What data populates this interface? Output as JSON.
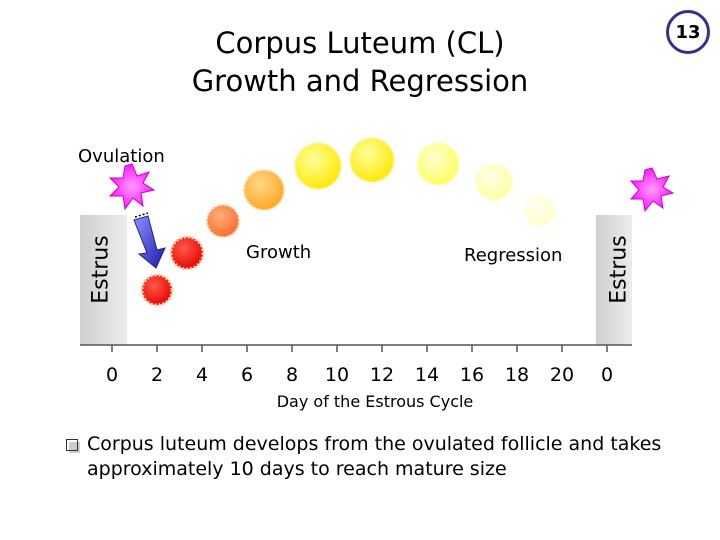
{
  "slide_number": "13",
  "title_line1": "Corpus Luteum (CL)",
  "title_line2": "Growth and Regression",
  "labels": {
    "ovulation": "Ovulation",
    "growth": "Growth",
    "regression": "Regression",
    "estrus_left": "Estrus",
    "estrus_right": "Estrus",
    "x_axis": "Day of the Estrous Cycle"
  },
  "day_ticks": [
    "0",
    "2",
    "4",
    "6",
    "8",
    "10",
    "12",
    "14",
    "16",
    "18",
    "20",
    "0"
  ],
  "bullet": {
    "line1": "Corpus luteum develops from the ovulated follicle and takes",
    "line2": "approximately 10 days to reach mature size"
  },
  "colors": {
    "ovulation_star": "#ff00ff",
    "cl_day1": "#ff0000",
    "cl_day4": "#ff2a1a",
    "cl_day5": "#ff7a3a",
    "cl_day6": "#ffb030",
    "cl_day8": "#ffe020",
    "cl_day10": "#ffff22",
    "cl_day13": "#ffff66",
    "cl_day15": "#ffffa0",
    "cl_day17": "#ffffcc",
    "badge_border": "#3b2d8c",
    "arrow": "#2a2ab8"
  }
}
